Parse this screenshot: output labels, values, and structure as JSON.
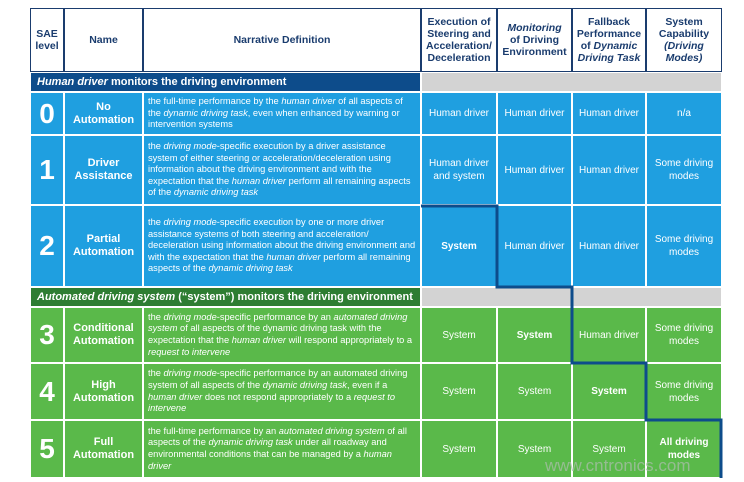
{
  "header": [
    [
      {
        "text": "SAE level"
      }
    ],
    [
      {
        "text": "Name"
      }
    ],
    [
      {
        "text": "Narrative Definition"
      }
    ],
    [
      {
        "text": "Execution of Steering and Acceleration/ Deceleration"
      }
    ],
    [
      {
        "text": "Monitoring",
        "em": true
      },
      {
        "text": " of Driving Environment"
      }
    ],
    [
      {
        "text": "Fallback Performance of "
      },
      {
        "text": "Dynamic Driving Task",
        "em": true
      }
    ],
    [
      {
        "text": "System Capability "
      },
      {
        "text": "(Driving Modes)",
        "em": true
      }
    ]
  ],
  "sections": [
    {
      "title": [
        {
          "text": "Human driver",
          "em": true
        },
        {
          "text": " monitors the driving environment"
        }
      ]
    },
    {
      "title": [
        {
          "text": "Automated driving system",
          "em": true
        },
        {
          "text": " (“system”) monitors the driving environment"
        }
      ]
    }
  ],
  "levels": [
    {
      "level": 0,
      "name": "No Automation",
      "narrative": [
        {
          "text": "the full-time performance by the "
        },
        {
          "text": "human driver",
          "em": true
        },
        {
          "text": " of all aspects of the "
        },
        {
          "text": "dynamic driving task",
          "em": true
        },
        {
          "text": ", even when enhanced by warning or intervention systems"
        }
      ],
      "cells": [
        {
          "text": "Human driver"
        },
        {
          "text": "Human driver"
        },
        {
          "text": "Human driver"
        },
        {
          "text": "n/a"
        }
      ]
    },
    {
      "level": 1,
      "name": "Driver Assistance",
      "narrative": [
        {
          "text": "the "
        },
        {
          "text": "driving mode",
          "em": true
        },
        {
          "text": "-specific execution by a driver assistance system of either steering or acceleration/deceleration using information about the driving environment and with the expectation that the "
        },
        {
          "text": "human driver",
          "em": true
        },
        {
          "text": " perform all remaining aspects of the "
        },
        {
          "text": "dynamic driving task",
          "em": true
        }
      ],
      "cells": [
        {
          "text": "Human driver and system"
        },
        {
          "text": "Human driver"
        },
        {
          "text": "Human driver"
        },
        {
          "text": "Some driving modes"
        }
      ]
    },
    {
      "level": 2,
      "name": "Partial Automation",
      "narrative": [
        {
          "text": "the "
        },
        {
          "text": "driving mode",
          "em": true
        },
        {
          "text": "-specific execution by one or more driver assistance systems of both steering and acceleration/ deceleration using information about the driving environment and with the expectation that the "
        },
        {
          "text": "human driver",
          "em": true
        },
        {
          "text": " perform all remaining aspects of the "
        },
        {
          "text": "dynamic driving task",
          "em": true
        }
      ],
      "cells": [
        {
          "text": "System",
          "bold": true
        },
        {
          "text": "Human driver"
        },
        {
          "text": "Human driver"
        },
        {
          "text": "Some driving modes"
        }
      ]
    },
    {
      "level": 3,
      "name": "Conditional Automation",
      "narrative": [
        {
          "text": "the "
        },
        {
          "text": "driving mode",
          "em": true
        },
        {
          "text": "-specific performance by an "
        },
        {
          "text": "automated driving system",
          "em": true
        },
        {
          "text": " of all aspects of the dynamic driving task with the expectation that the "
        },
        {
          "text": "human driver",
          "em": true
        },
        {
          "text": " will respond appropriately to a "
        },
        {
          "text": "request to intervene",
          "em": true
        }
      ],
      "cells": [
        {
          "text": "System"
        },
        {
          "text": "System",
          "bold": true
        },
        {
          "text": "Human driver"
        },
        {
          "text": "Some driving modes"
        }
      ]
    },
    {
      "level": 4,
      "name": "High Automation",
      "narrative": [
        {
          "text": "the "
        },
        {
          "text": "driving mode",
          "em": true
        },
        {
          "text": "-specific performance by an automated driving system of all aspects of the "
        },
        {
          "text": "dynamic driving task",
          "em": true
        },
        {
          "text": ", even if a "
        },
        {
          "text": "human driver",
          "em": true
        },
        {
          "text": " does not respond appropriately to a "
        },
        {
          "text": "request to intervene",
          "em": true
        }
      ],
      "cells": [
        {
          "text": "System"
        },
        {
          "text": "System"
        },
        {
          "text": "System",
          "bold": true
        },
        {
          "text": "Some driving modes"
        }
      ]
    },
    {
      "level": 5,
      "name": "Full Automation",
      "narrative": [
        {
          "text": "the full-time performance by an "
        },
        {
          "text": "automated driving system",
          "em": true
        },
        {
          "text": " of all aspects of the "
        },
        {
          "text": "dynamic driving task",
          "em": true
        },
        {
          "text": " under all roadway and environmental conditions that can be managed by a "
        },
        {
          "text": "human driver",
          "em": true
        }
      ],
      "cells": [
        {
          "text": "System"
        },
        {
          "text": "System"
        },
        {
          "text": "System"
        },
        {
          "text": "All driving modes",
          "bold": true
        }
      ]
    }
  ],
  "watermark": "www.cntronics.com"
}
